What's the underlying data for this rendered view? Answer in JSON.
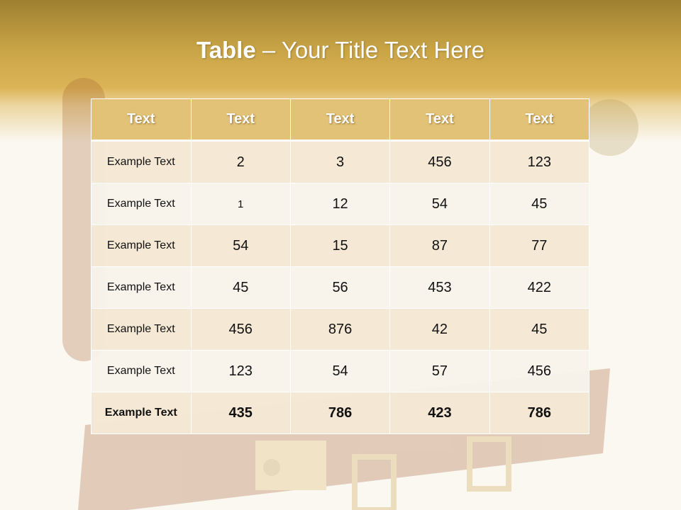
{
  "slide": {
    "title_bold": "Table",
    "title_rest": " – Your Title Text Here"
  },
  "table": {
    "headers": [
      "Text",
      "Text",
      "Text",
      "Text",
      "Text"
    ],
    "rows": [
      [
        "Example Text",
        "2",
        "3",
        "456",
        "123"
      ],
      [
        "Example Text",
        "1",
        "12",
        "54",
        "45"
      ],
      [
        "Example Text",
        "54",
        "15",
        "87",
        "77"
      ],
      [
        "Example Text",
        "45",
        "56",
        "453",
        "422"
      ],
      [
        "Example Text",
        "456",
        "876",
        "42",
        "45"
      ],
      [
        "Example Text",
        "123",
        "54",
        "57",
        "456"
      ],
      [
        "Example Text",
        "435",
        "786",
        "423",
        "786"
      ]
    ]
  },
  "colors": {
    "header_gold": "#e2c277",
    "band_gold": "#c9a446",
    "row_light": "#f8f3eb",
    "row_tan": "#f4e8d4"
  }
}
